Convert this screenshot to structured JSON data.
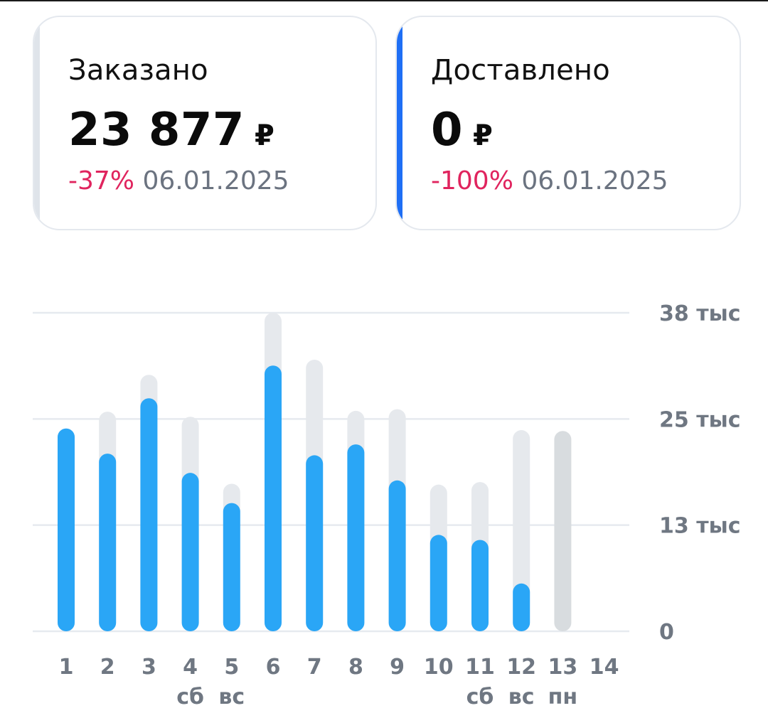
{
  "cards": [
    {
      "title": "Заказано",
      "value": "23 877",
      "currency": "₽",
      "change": "-37%",
      "date": "06.01.2025",
      "accent": "#dfe4ea"
    },
    {
      "title": "Доставлено",
      "value": "0",
      "currency": "₽",
      "change": "-100%",
      "date": "06.01.2025",
      "accent": "#1f6ff5"
    }
  ],
  "colors": {
    "primary_bar": "#2aa6f6",
    "secondary_bar": "#e6e9ed",
    "projected_bar": "#d8dcdf",
    "change_negative": "#e0245e",
    "axis_text": "#6f7782"
  },
  "chart_data": {
    "type": "bar",
    "categories": [
      "1",
      "2",
      "3",
      "4",
      "5",
      "6",
      "7",
      "8",
      "9",
      "10",
      "11",
      "12",
      "13",
      "14"
    ],
    "weekday_labels": [
      "",
      "",
      "",
      "сб",
      "вс",
      "",
      "",
      "",
      "",
      "",
      "сб",
      "вс",
      "пн",
      ""
    ],
    "series": [
      {
        "values": [
          24200,
          21200,
          27800,
          18900,
          15300,
          31700,
          21000,
          22300,
          18000,
          11500,
          10900,
          5700,
          null,
          null
        ]
      },
      {
        "values": [
          24200,
          26200,
          30600,
          25600,
          17600,
          38000,
          32400,
          26300,
          26500,
          17500,
          17800,
          24000,
          23900,
          null
        ]
      }
    ],
    "y_ticks": [
      "0",
      "13 тыс",
      "25 тыс",
      "38 тыс"
    ],
    "y_tick_values": [
      0,
      12667,
      25333,
      38000
    ],
    "ylim": [
      0,
      38000
    ],
    "grid": true
  }
}
